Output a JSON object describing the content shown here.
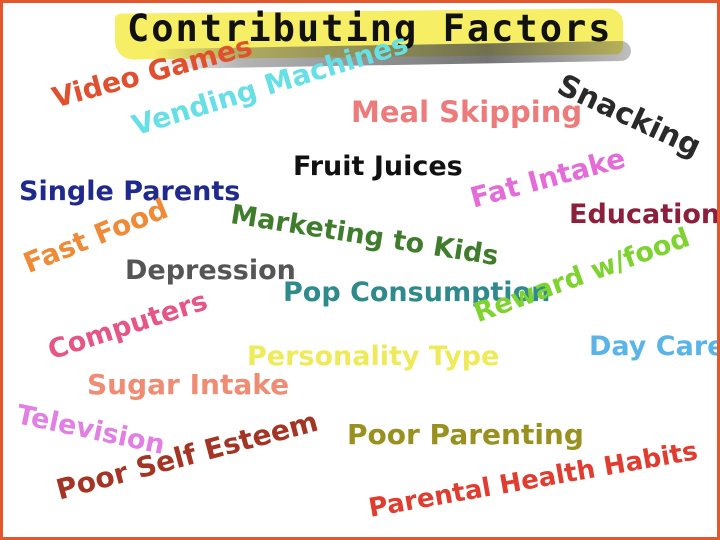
{
  "title": "Contributing Factors",
  "colors": {
    "border": "#e2572b",
    "title_highlight": "#f6ee64",
    "title_text": "#111111"
  },
  "factors": [
    {
      "label": "Video Games",
      "color": "#e0502f"
    },
    {
      "label": "Vending Machines",
      "color": "#66dfe6"
    },
    {
      "label": "Meal Skipping",
      "color": "#ec7c7c"
    },
    {
      "label": "Snacking",
      "color": "#2a2a2a"
    },
    {
      "label": "Fruit Juices",
      "color": "#111111"
    },
    {
      "label": "Single Parents",
      "color": "#1f2a8c"
    },
    {
      "label": "Fat Intake",
      "color": "#e46cd9"
    },
    {
      "label": "Marketing to Kids",
      "color": "#3f7d2d"
    },
    {
      "label": "Education",
      "color": "#8c1f3c"
    },
    {
      "label": "Fast Food",
      "color": "#ef8a37"
    },
    {
      "label": "Depression",
      "color": "#555555"
    },
    {
      "label": "Pop Consumption",
      "color": "#2f8a8c"
    },
    {
      "label": "Reward w/food",
      "color": "#7ed331"
    },
    {
      "label": "Computers",
      "color": "#e55586"
    },
    {
      "label": "Day Care",
      "color": "#5ab4e6"
    },
    {
      "label": "Personality Type",
      "color": "#efea5a"
    },
    {
      "label": "Sugar Intake",
      "color": "#ef8c74"
    },
    {
      "label": "Television",
      "color": "#e27fe3"
    },
    {
      "label": "Poor Self Esteem",
      "color": "#a43424"
    },
    {
      "label": "Poor Parenting",
      "color": "#99911f"
    },
    {
      "label": "Parental Health Habits",
      "color": "#e03d30"
    }
  ]
}
